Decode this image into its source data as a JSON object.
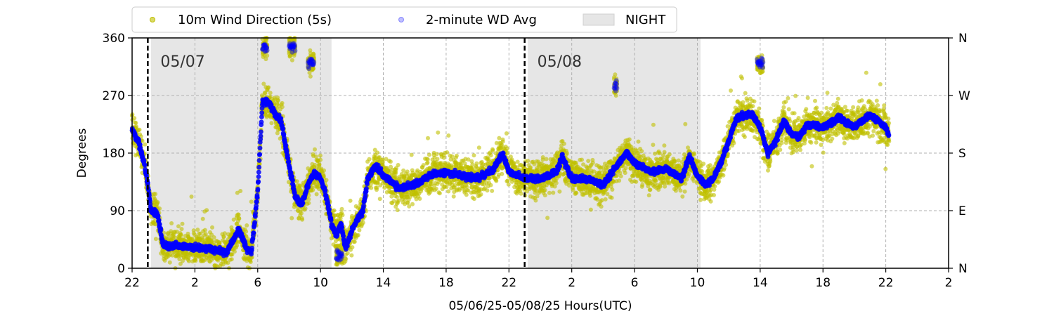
{
  "chart_data": {
    "type": "scatter",
    "xlabel": "05/06/25-05/08/25  Hours(UTC)",
    "ylabel": "Degrees",
    "x_range_hours": [
      22,
      74
    ],
    "ylim": [
      0,
      360
    ],
    "x_ticks": [
      {
        "hour": 22,
        "label": "22"
      },
      {
        "hour": 26,
        "label": "2"
      },
      {
        "hour": 30,
        "label": "6"
      },
      {
        "hour": 34,
        "label": "10"
      },
      {
        "hour": 38,
        "label": "14"
      },
      {
        "hour": 42,
        "label": "18"
      },
      {
        "hour": 46,
        "label": "22"
      },
      {
        "hour": 50,
        "label": "2"
      },
      {
        "hour": 54,
        "label": "6"
      },
      {
        "hour": 58,
        "label": "10"
      },
      {
        "hour": 62,
        "label": "14"
      },
      {
        "hour": 66,
        "label": "18"
      },
      {
        "hour": 70,
        "label": "22"
      },
      {
        "hour": 74,
        "label": "2"
      }
    ],
    "y_ticks": [
      0,
      90,
      180,
      270,
      360
    ],
    "right_ticks": [
      {
        "value": 0,
        "label": "N"
      },
      {
        "value": 90,
        "label": "E"
      },
      {
        "value": 180,
        "label": "S"
      },
      {
        "value": 270,
        "label": "W"
      },
      {
        "value": 360,
        "label": "N"
      }
    ],
    "grid": true,
    "legend_placement": "top",
    "day_markers": [
      {
        "hour": 23.0,
        "label": "05/07"
      },
      {
        "hour": 47.0,
        "label": "05/08"
      }
    ],
    "night_periods": [
      {
        "start": 23.2,
        "end": 34.7
      },
      {
        "start": 47.2,
        "end": 58.2
      }
    ],
    "series": [
      {
        "name": "10m Wind Direction (5s)",
        "color": "#bfbf00",
        "marker": "circle",
        "spread_deg": 28
      },
      {
        "name": "2-minute WD Avg",
        "color": "#0000ff",
        "marker": "circle",
        "trend": [
          [
            22.0,
            215
          ],
          [
            22.4,
            200
          ],
          [
            22.8,
            160
          ],
          [
            23.0,
            130
          ],
          [
            23.2,
            90
          ],
          [
            23.6,
            85
          ],
          [
            24.0,
            35
          ],
          [
            25.0,
            35
          ],
          [
            26.0,
            32
          ],
          [
            27.0,
            30
          ],
          [
            28.0,
            25
          ],
          [
            28.8,
            60
          ],
          [
            29.3,
            30
          ],
          [
            29.6,
            25
          ],
          [
            30.0,
            120
          ],
          [
            30.3,
            260
          ],
          [
            30.7,
            260
          ],
          [
            31.1,
            240
          ],
          [
            31.5,
            230
          ],
          [
            32.0,
            160
          ],
          [
            32.4,
            110
          ],
          [
            32.8,
            100
          ],
          [
            33.2,
            130
          ],
          [
            33.6,
            150
          ],
          [
            34.0,
            140
          ],
          [
            34.3,
            120
          ],
          [
            34.7,
            70
          ],
          [
            35.0,
            50
          ],
          [
            35.3,
            70
          ],
          [
            35.6,
            30
          ],
          [
            36.0,
            60
          ],
          [
            36.3,
            75
          ],
          [
            36.7,
            90
          ],
          [
            37.0,
            140
          ],
          [
            37.5,
            160
          ],
          [
            38.0,
            145
          ],
          [
            39.0,
            125
          ],
          [
            40.0,
            130
          ],
          [
            41.0,
            145
          ],
          [
            42.0,
            150
          ],
          [
            43.0,
            145
          ],
          [
            44.0,
            140
          ],
          [
            45.0,
            155
          ],
          [
            45.6,
            180
          ],
          [
            46.0,
            150
          ],
          [
            47.0,
            140
          ],
          [
            48.0,
            140
          ],
          [
            49.0,
            150
          ],
          [
            49.4,
            175
          ],
          [
            50.0,
            140
          ],
          [
            51.0,
            140
          ],
          [
            52.0,
            130
          ],
          [
            53.0,
            165
          ],
          [
            53.5,
            180
          ],
          [
            54.0,
            165
          ],
          [
            55.0,
            150
          ],
          [
            56.0,
            155
          ],
          [
            57.0,
            140
          ],
          [
            57.5,
            175
          ],
          [
            58.0,
            145
          ],
          [
            58.5,
            130
          ],
          [
            59.0,
            140
          ],
          [
            59.6,
            170
          ],
          [
            60.0,
            200
          ],
          [
            60.5,
            235
          ],
          [
            61.0,
            240
          ],
          [
            61.5,
            240
          ],
          [
            62.0,
            220
          ],
          [
            62.5,
            180
          ],
          [
            63.0,
            200
          ],
          [
            63.5,
            230
          ],
          [
            64.0,
            210
          ],
          [
            64.5,
            205
          ],
          [
            65.0,
            225
          ],
          [
            66.0,
            220
          ],
          [
            67.0,
            235
          ],
          [
            68.0,
            220
          ],
          [
            69.0,
            240
          ],
          [
            70.0,
            220
          ],
          [
            70.2,
            210
          ]
        ],
        "excursions": [
          {
            "start": 30.3,
            "end": 30.6,
            "value": 345
          },
          {
            "start": 32.0,
            "end": 32.4,
            "value": 345
          },
          {
            "start": 33.2,
            "end": 33.6,
            "value": 320
          },
          {
            "start": 35.0,
            "end": 35.4,
            "value": 20
          },
          {
            "start": 52.7,
            "end": 52.9,
            "value": 285
          },
          {
            "start": 61.8,
            "end": 62.2,
            "value": 320
          }
        ]
      }
    ]
  }
}
